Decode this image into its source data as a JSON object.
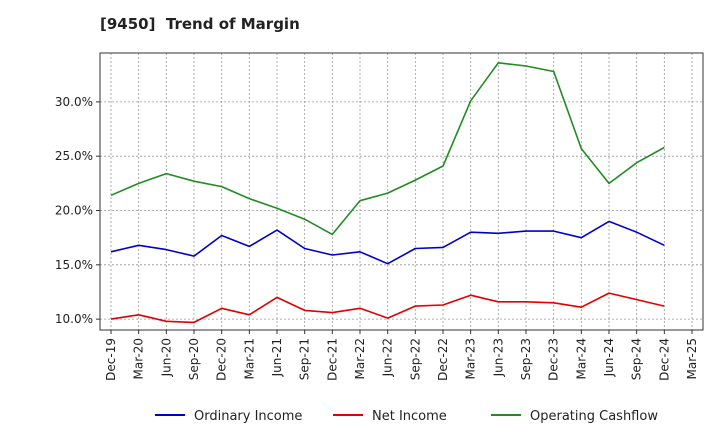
{
  "chart_data": {
    "type": "line",
    "title": "[9450]  Trend of Margin",
    "x": [
      "Dec-19",
      "Mar-20",
      "Jun-20",
      "Sep-20",
      "Dec-20",
      "Mar-21",
      "Jun-21",
      "Sep-21",
      "Dec-21",
      "Mar-22",
      "Jun-22",
      "Sep-22",
      "Dec-22",
      "Mar-23",
      "Jun-23",
      "Sep-23",
      "Dec-23",
      "Mar-24",
      "Jun-24",
      "Sep-24",
      "Dec-24",
      "Mar-25"
    ],
    "y_ticks": [
      {
        "value": 10,
        "label": "10.0%"
      },
      {
        "value": 15,
        "label": "15.0%"
      },
      {
        "value": 20,
        "label": "20.0%"
      },
      {
        "value": 25,
        "label": "25.0%"
      },
      {
        "value": 30,
        "label": "30.0%"
      }
    ],
    "ylim": [
      9.0,
      34.5
    ],
    "grid": true,
    "legend_position": "bottom",
    "series": [
      {
        "name": "Ordinary Income",
        "color": "#0000cc",
        "values": [
          16.2,
          16.8,
          16.4,
          15.8,
          17.7,
          16.7,
          18.2,
          16.5,
          15.9,
          16.2,
          15.1,
          16.5,
          16.6,
          18.0,
          17.9,
          18.1,
          18.1,
          17.5,
          19.0,
          18.0,
          16.8,
          null
        ]
      },
      {
        "name": "Net Income",
        "color": "#e00000",
        "values": [
          10.0,
          10.4,
          9.8,
          9.7,
          11.0,
          10.4,
          12.0,
          10.8,
          10.6,
          11.0,
          10.1,
          11.2,
          11.3,
          12.2,
          11.6,
          11.6,
          11.5,
          11.1,
          12.4,
          11.8,
          11.2,
          null
        ]
      },
      {
        "name": "Operating Cashflow",
        "color": "#228b22",
        "values": [
          21.4,
          22.5,
          23.4,
          22.7,
          22.2,
          21.1,
          20.2,
          19.2,
          17.8,
          20.9,
          21.6,
          22.8,
          24.1,
          30.1,
          33.6,
          33.3,
          32.8,
          25.7,
          22.5,
          24.4,
          25.8,
          null
        ]
      }
    ]
  }
}
